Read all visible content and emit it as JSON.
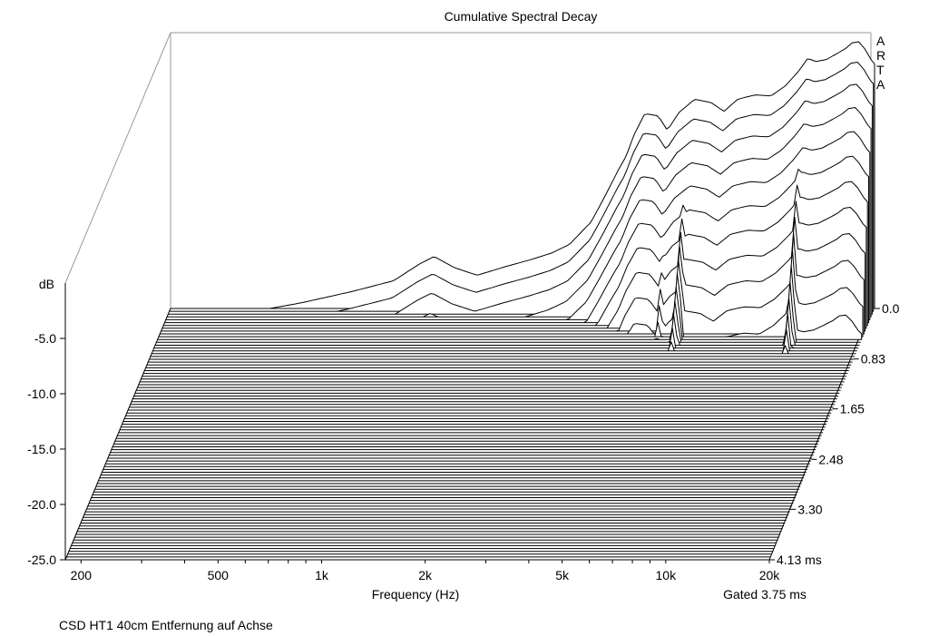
{
  "chart_data": {
    "type": "waterfall",
    "title": "Cumulative Spectral Decay",
    "xlabel": "Frequency (Hz)",
    "ylabel": "dB",
    "zlabel": "ms",
    "x_scale": "log",
    "xlim": [
      180,
      20000
    ],
    "ylim": [
      -25,
      0
    ],
    "zlim": [
      0,
      4.13
    ],
    "x_ticks": [
      {
        "value": 200,
        "label": "200"
      },
      {
        "value": 500,
        "label": "500"
      },
      {
        "value": 1000,
        "label": "1k"
      },
      {
        "value": 2000,
        "label": "2k"
      },
      {
        "value": 5000,
        "label": "5k"
      },
      {
        "value": 10000,
        "label": "10k"
      },
      {
        "value": 20000,
        "label": "20k"
      }
    ],
    "y_ticks": [
      {
        "value": -5,
        "label": "-5.0"
      },
      {
        "value": -10,
        "label": "-10.0"
      },
      {
        "value": -15,
        "label": "-15.0"
      },
      {
        "value": -20,
        "label": "-20.0"
      },
      {
        "value": -25,
        "label": "-25.0"
      }
    ],
    "z_ticks": [
      {
        "value": 0.0,
        "label": "0.0"
      },
      {
        "value": 0.83,
        "label": "0.83"
      },
      {
        "value": 1.65,
        "label": "1.65"
      },
      {
        "value": 2.48,
        "label": "2.48"
      },
      {
        "value": 3.3,
        "label": "3.30"
      },
      {
        "value": 4.13,
        "label": "4.13 ms"
      }
    ],
    "gate_label": "Gated 3.75 ms",
    "brand": [
      "A",
      "R",
      "T",
      "A"
    ],
    "caption": "CSD HT1 40cm Entfernung auf Achse",
    "slice_count": 90,
    "decayed_slices": 15,
    "decay_db_per_slice": 1.0,
    "decay_shape": 0.35,
    "ridges": [
      {
        "freq_hz": 5800,
        "sustain_db": 1.8,
        "decay_db_per_slice": 0.1
      },
      {
        "freq_hz": 5100,
        "sustain_db": 1.2,
        "decay_db_per_slice": 0.12
      },
      {
        "freq_hz": 12500,
        "sustain_db": 2.0,
        "decay_db_per_slice": 0.13
      }
    ],
    "first_slice_response": [
      {
        "freq_hz": 350,
        "db": -25
      },
      {
        "freq_hz": 430,
        "db": -24.5
      },
      {
        "freq_hz": 600,
        "db": -23.5
      },
      {
        "freq_hz": 800,
        "db": -22.5
      },
      {
        "freq_hz": 950,
        "db": -21.0
      },
      {
        "freq_hz": 1050,
        "db": -20.3
      },
      {
        "freq_hz": 1200,
        "db": -21.3
      },
      {
        "freq_hz": 1400,
        "db": -22.0
      },
      {
        "freq_hz": 1700,
        "db": -21.2
      },
      {
        "freq_hz": 2000,
        "db": -20.6
      },
      {
        "freq_hz": 2300,
        "db": -20.0
      },
      {
        "freq_hz": 2600,
        "db": -19.2
      },
      {
        "freq_hz": 2850,
        "db": -17.9
      },
      {
        "freq_hz": 3000,
        "db": -17.2
      },
      {
        "freq_hz": 3300,
        "db": -14.8
      },
      {
        "freq_hz": 3600,
        "db": -12.5
      },
      {
        "freq_hz": 3800,
        "db": -11.2
      },
      {
        "freq_hz": 4000,
        "db": -9.3
      },
      {
        "freq_hz": 4300,
        "db": -7.4
      },
      {
        "freq_hz": 4700,
        "db": -7.6
      },
      {
        "freq_hz": 5000,
        "db": -8.9
      },
      {
        "freq_hz": 5400,
        "db": -7.3
      },
      {
        "freq_hz": 6000,
        "db": -6.1
      },
      {
        "freq_hz": 6700,
        "db": -6.4
      },
      {
        "freq_hz": 7300,
        "db": -7.2
      },
      {
        "freq_hz": 8000,
        "db": -6.1
      },
      {
        "freq_hz": 9000,
        "db": -5.7
      },
      {
        "freq_hz": 10000,
        "db": -5.8
      },
      {
        "freq_hz": 11000,
        "db": -4.9
      },
      {
        "freq_hz": 12000,
        "db": -3.6
      },
      {
        "freq_hz": 12800,
        "db": -2.4
      },
      {
        "freq_hz": 13500,
        "db": -2.7
      },
      {
        "freq_hz": 14500,
        "db": -2.5
      },
      {
        "freq_hz": 15500,
        "db": -2.0
      },
      {
        "freq_hz": 16500,
        "db": -1.5
      },
      {
        "freq_hz": 17200,
        "db": -1.0
      },
      {
        "freq_hz": 18000,
        "db": -0.9
      },
      {
        "freq_hz": 18800,
        "db": -1.6
      },
      {
        "freq_hz": 19500,
        "db": -2.5
      },
      {
        "freq_hz": 20000,
        "db": -2.9
      }
    ]
  }
}
